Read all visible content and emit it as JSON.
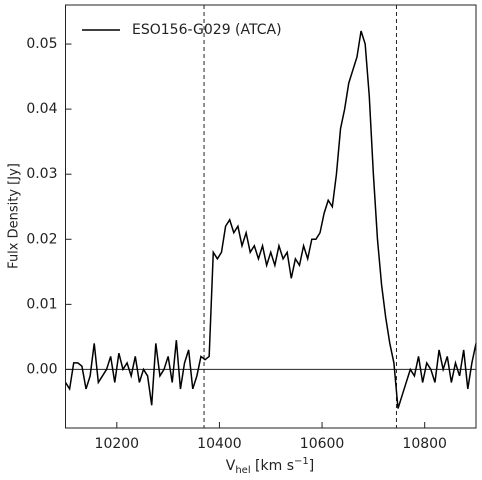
{
  "chart_data": {
    "type": "line",
    "y_label": "Fulx Density [Jy]",
    "x_label": {
      "main": "V",
      "sub": "hel",
      "rest": " [km s",
      "sup": "−1",
      "end": "]"
    },
    "xlim": [
      10100,
      10900
    ],
    "ylim": [
      -0.009,
      0.056
    ],
    "xticks": [
      10200,
      10400,
      10600,
      10800
    ],
    "yticks": [
      {
        "value": 0,
        "label": "0.00"
      },
      0.01,
      0.02,
      0.03,
      0.04,
      0.05
    ],
    "vlines": [
      10370,
      10745
    ],
    "hline": 0,
    "legend": "upper left",
    "series": [
      {
        "name": "ESO156-G029 (ATCA)",
        "color": "#000000",
        "x": [
          10100,
          10108,
          10116,
          10124,
          10132,
          10140,
          10148,
          10156,
          10164,
          10172,
          10180,
          10188,
          10196,
          10204,
          10212,
          10220,
          10228,
          10236,
          10244,
          10252,
          10260,
          10268,
          10276,
          10284,
          10292,
          10300,
          10308,
          10316,
          10324,
          10332,
          10340,
          10348,
          10356,
          10364,
          10372,
          10380,
          10388,
          10396,
          10404,
          10412,
          10420,
          10428,
          10436,
          10444,
          10452,
          10460,
          10468,
          10476,
          10484,
          10492,
          10500,
          10508,
          10516,
          10524,
          10532,
          10540,
          10548,
          10556,
          10564,
          10572,
          10580,
          10588,
          10596,
          10604,
          10612,
          10620,
          10628,
          10636,
          10644,
          10652,
          10660,
          10668,
          10676,
          10684,
          10692,
          10700,
          10708,
          10716,
          10724,
          10732,
          10740,
          10748,
          10756,
          10764,
          10772,
          10780,
          10788,
          10796,
          10804,
          10812,
          10820,
          10828,
          10836,
          10844,
          10852,
          10860,
          10868,
          10876,
          10884,
          10892,
          10900
        ],
        "values": [
          -0.002,
          -0.003,
          0.001,
          0.001,
          0.0005,
          -0.003,
          -0.001,
          0.004,
          -0.002,
          -0.001,
          0.0,
          0.002,
          -0.002,
          0.0025,
          0.0,
          0.001,
          -0.001,
          0.002,
          -0.002,
          0.0,
          -0.001,
          -0.0055,
          0.004,
          -0.001,
          0.0,
          0.002,
          -0.002,
          0.0045,
          -0.003,
          0.001,
          0.003,
          -0.003,
          -0.001,
          0.002,
          0.0015,
          0.002,
          0.018,
          0.017,
          0.018,
          0.022,
          0.023,
          0.021,
          0.022,
          0.019,
          0.021,
          0.018,
          0.019,
          0.017,
          0.019,
          0.016,
          0.018,
          0.016,
          0.019,
          0.017,
          0.018,
          0.014,
          0.017,
          0.016,
          0.019,
          0.017,
          0.02,
          0.02,
          0.021,
          0.024,
          0.026,
          0.025,
          0.03,
          0.037,
          0.04,
          0.044,
          0.046,
          0.048,
          0.052,
          0.05,
          0.042,
          0.03,
          0.02,
          0.013,
          0.008,
          0.004,
          0.001,
          -0.006,
          -0.004,
          -0.002,
          0.0,
          -0.001,
          0.002,
          -0.002,
          0.001,
          0.0,
          -0.002,
          0.003,
          0.0,
          0.002,
          -0.002,
          0.001,
          -0.001,
          0.003,
          -0.003,
          0.001,
          0.004
        ]
      }
    ]
  }
}
